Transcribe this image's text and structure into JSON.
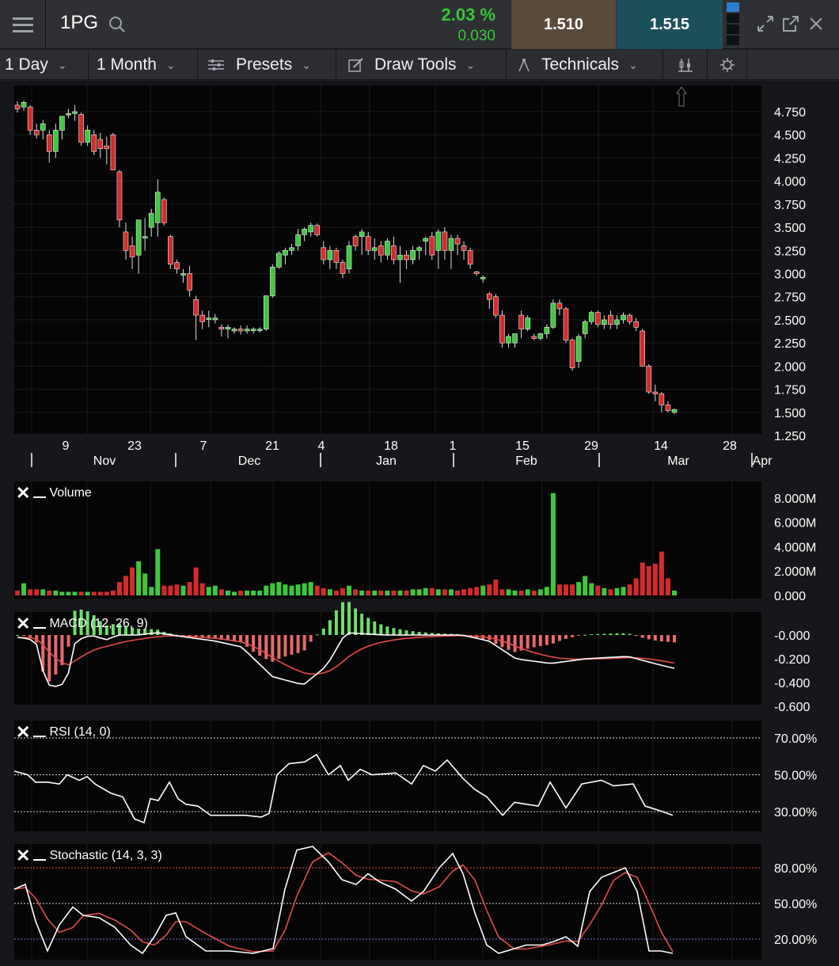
{
  "header": {
    "symbol": "1PG",
    "change_pct": "2.03 %",
    "change_abs": "0.030",
    "bid": "1.510",
    "ask": "1.515"
  },
  "toolbar": {
    "interval": "1 Day",
    "range": "1 Month",
    "presets": "Presets",
    "draw_tools": "Draw Tools",
    "technicals": "Technicals"
  },
  "price_axis": [
    "4.750",
    "4.500",
    "4.250",
    "4.000",
    "3.750",
    "3.500",
    "3.250",
    "3.000",
    "2.750",
    "2.500",
    "2.250",
    "2.000",
    "1.750",
    "1.500",
    "1.250"
  ],
  "date_axis": {
    "days": [
      "9",
      "23",
      "7",
      "21",
      "4",
      "18",
      "1",
      "15",
      "29",
      "14",
      "28"
    ],
    "months": [
      "Nov",
      "Dec",
      "Jan",
      "Feb",
      "Mar",
      "Apr"
    ]
  },
  "indicators": {
    "volume": {
      "label": "Volume",
      "axis": [
        "8.000M",
        "6.000M",
        "4.000M",
        "2.000M",
        "0.000"
      ]
    },
    "macd": {
      "label": "MACD (12, 26, 9)",
      "axis": [
        "-0.000",
        "-0.200",
        "-0.400",
        "-0.600"
      ]
    },
    "rsi": {
      "label": "RSI (14, 0)",
      "axis": [
        "70.00%",
        "50.00%",
        "30.00%"
      ]
    },
    "stochastic": {
      "label": "Stochastic (14, 3, 3)",
      "axis": [
        "80.00%",
        "50.00%",
        "20.00%"
      ]
    }
  },
  "colors": {
    "up": "#3ec83e",
    "down": "#d42b2b",
    "signal": "#e84a4a",
    "line": "#ffffff",
    "accent": "#2a7fd4"
  },
  "chart_data": [
    {
      "type": "candlestick",
      "title": "1PG",
      "ylim": [
        1.25,
        4.85
      ],
      "x_ticks": [
        "9 Nov",
        "23 Nov",
        "7 Dec",
        "21 Dec",
        "4 Jan",
        "18 Jan",
        "1 Feb",
        "15 Feb",
        "29 Feb",
        "14 Mar",
        "28 Mar"
      ],
      "ohlc": [
        [
          4.82,
          4.86,
          4.74,
          4.78
        ],
        [
          4.8,
          4.87,
          4.76,
          4.85
        ],
        [
          4.8,
          4.82,
          4.5,
          4.55
        ],
        [
          4.55,
          4.62,
          4.46,
          4.5
        ],
        [
          4.55,
          4.66,
          4.45,
          4.62
        ],
        [
          4.5,
          4.55,
          4.2,
          4.32
        ],
        [
          4.32,
          4.62,
          4.25,
          4.55
        ],
        [
          4.55,
          4.7,
          4.45,
          4.7
        ],
        [
          4.72,
          4.78,
          4.68,
          4.73
        ],
        [
          4.73,
          4.82,
          4.65,
          4.75
        ],
        [
          4.72,
          4.74,
          4.38,
          4.42
        ],
        [
          4.42,
          4.6,
          4.38,
          4.55
        ],
        [
          4.5,
          4.55,
          4.28,
          4.32
        ],
        [
          4.45,
          4.52,
          4.25,
          4.35
        ],
        [
          4.38,
          4.48,
          4.18,
          4.35
        ],
        [
          4.5,
          4.52,
          4.12,
          4.12
        ],
        [
          4.1,
          4.12,
          3.5,
          3.58
        ],
        [
          3.45,
          3.55,
          3.15,
          3.25
        ],
        [
          3.3,
          3.4,
          3.05,
          3.18
        ],
        [
          3.2,
          3.58,
          3.0,
          3.58
        ],
        [
          3.4,
          3.6,
          3.25,
          3.4
        ],
        [
          3.5,
          3.7,
          3.4,
          3.65
        ],
        [
          3.55,
          4.02,
          3.4,
          3.88
        ],
        [
          3.8,
          3.82,
          3.52,
          3.55
        ],
        [
          3.4,
          3.42,
          3.05,
          3.1
        ],
        [
          3.12,
          3.15,
          3.0,
          3.05
        ],
        [
          3.0,
          3.05,
          2.9,
          3.0
        ],
        [
          3.0,
          3.08,
          2.75,
          2.82
        ],
        [
          2.72,
          2.76,
          2.28,
          2.55
        ],
        [
          2.55,
          2.6,
          2.4,
          2.48
        ],
        [
          2.52,
          2.6,
          2.42,
          2.52
        ],
        [
          2.5,
          2.56,
          2.46,
          2.52
        ],
        [
          2.42,
          2.45,
          2.32,
          2.4
        ],
        [
          2.4,
          2.45,
          2.3,
          2.42
        ],
        [
          2.38,
          2.42,
          2.35,
          2.4
        ],
        [
          2.4,
          2.44,
          2.34,
          2.38
        ],
        [
          2.38,
          2.44,
          2.35,
          2.4
        ],
        [
          2.4,
          2.42,
          2.35,
          2.4
        ],
        [
          2.4,
          2.42,
          2.36,
          2.4
        ],
        [
          2.4,
          2.76,
          2.38,
          2.76
        ],
        [
          2.76,
          3.1,
          2.74,
          3.07
        ],
        [
          3.07,
          3.24,
          3.05,
          3.22
        ],
        [
          3.2,
          3.28,
          3.1,
          3.25
        ],
        [
          3.25,
          3.32,
          3.2,
          3.28
        ],
        [
          3.3,
          3.48,
          3.25,
          3.42
        ],
        [
          3.42,
          3.5,
          3.35,
          3.48
        ],
        [
          3.45,
          3.55,
          3.4,
          3.52
        ],
        [
          3.52,
          3.54,
          3.4,
          3.42
        ],
        [
          3.28,
          3.35,
          3.1,
          3.15
        ],
        [
          3.15,
          3.3,
          3.05,
          3.25
        ],
        [
          3.25,
          3.28,
          3.05,
          3.12
        ],
        [
          3.12,
          3.15,
          2.95,
          3.0
        ],
        [
          3.05,
          3.35,
          3.0,
          3.3
        ],
        [
          3.4,
          3.42,
          3.25,
          3.3
        ],
        [
          3.4,
          3.48,
          3.2,
          3.45
        ],
        [
          3.4,
          3.45,
          3.2,
          3.25
        ],
        [
          3.25,
          3.38,
          3.15,
          3.28
        ],
        [
          3.3,
          3.35,
          3.12,
          3.2
        ],
        [
          3.2,
          3.38,
          3.15,
          3.35
        ],
        [
          3.3,
          3.4,
          3.1,
          3.15
        ],
        [
          3.15,
          3.3,
          2.9,
          3.2
        ],
        [
          3.2,
          3.25,
          3.05,
          3.15
        ],
        [
          3.15,
          3.3,
          3.1,
          3.25
        ],
        [
          3.25,
          3.3,
          3.15,
          3.28
        ],
        [
          3.35,
          3.4,
          3.2,
          3.38
        ],
        [
          3.4,
          3.45,
          3.15,
          3.2
        ],
        [
          3.25,
          3.48,
          3.05,
          3.45
        ],
        [
          3.45,
          3.5,
          3.15,
          3.25
        ],
        [
          3.25,
          3.42,
          3.05,
          3.38
        ],
        [
          3.38,
          3.42,
          3.2,
          3.32
        ],
        [
          3.3,
          3.35,
          3.15,
          3.25
        ],
        [
          3.25,
          3.28,
          3.05,
          3.1
        ],
        [
          3.02,
          3.03,
          2.98,
          3.0
        ],
        [
          2.95,
          2.98,
          2.9,
          2.96
        ],
        [
          2.78,
          2.8,
          2.62,
          2.72
        ],
        [
          2.75,
          2.78,
          2.52,
          2.55
        ],
        [
          2.55,
          2.6,
          2.2,
          2.25
        ],
        [
          2.25,
          2.35,
          2.2,
          2.32
        ],
        [
          2.25,
          2.35,
          2.2,
          2.35
        ],
        [
          2.55,
          2.6,
          2.3,
          2.4
        ],
        [
          2.4,
          2.55,
          2.38,
          2.52
        ],
        [
          2.32,
          2.35,
          2.28,
          2.3
        ],
        [
          2.3,
          2.36,
          2.28,
          2.35
        ],
        [
          2.35,
          2.45,
          2.3,
          2.42
        ],
        [
          2.42,
          2.72,
          2.4,
          2.68
        ],
        [
          2.68,
          2.72,
          2.55,
          2.62
        ],
        [
          2.62,
          2.64,
          2.25,
          2.28
        ],
        [
          2.28,
          2.3,
          1.95,
          1.98
        ],
        [
          2.05,
          2.35,
          1.98,
          2.32
        ],
        [
          2.35,
          2.5,
          2.3,
          2.48
        ],
        [
          2.48,
          2.6,
          2.45,
          2.58
        ],
        [
          2.58,
          2.6,
          2.42,
          2.45
        ],
        [
          2.45,
          2.55,
          2.4,
          2.5
        ],
        [
          2.55,
          2.6,
          2.4,
          2.45
        ],
        [
          2.45,
          2.55,
          2.4,
          2.5
        ],
        [
          2.5,
          2.58,
          2.46,
          2.55
        ],
        [
          2.55,
          2.57,
          2.45,
          2.48
        ],
        [
          2.48,
          2.52,
          2.38,
          2.42
        ],
        [
          2.38,
          2.4,
          2.0,
          2.0
        ],
        [
          2.0,
          2.02,
          1.7,
          1.72
        ],
        [
          1.72,
          1.8,
          1.62,
          1.7
        ],
        [
          1.7,
          1.72,
          1.5,
          1.58
        ],
        [
          1.58,
          1.62,
          1.5,
          1.52
        ],
        [
          1.5,
          1.54,
          1.48,
          1.53
        ]
      ]
    }
  ]
}
